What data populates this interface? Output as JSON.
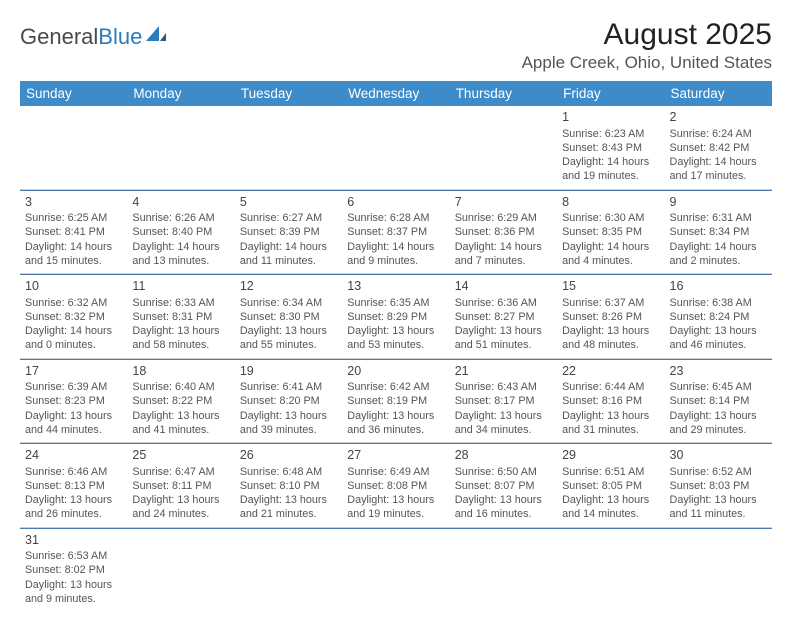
{
  "brand": {
    "part1": "General",
    "part2": "Blue"
  },
  "title": "August 2025",
  "location": "Apple Creek, Ohio, United States",
  "colors": {
    "header_bg": "#3d8bc8",
    "header_text": "#ffffff",
    "week_divider": "#4a7aa5",
    "cell_border": "#cfcfcf",
    "text": "#555555",
    "brand_blue": "#2b7bbf"
  },
  "weekdays": [
    "Sunday",
    "Monday",
    "Tuesday",
    "Wednesday",
    "Thursday",
    "Friday",
    "Saturday"
  ],
  "weeks": [
    [
      null,
      null,
      null,
      null,
      null,
      {
        "d": "1",
        "sr": "Sunrise: 6:23 AM",
        "ss": "Sunset: 8:43 PM",
        "dl1": "Daylight: 14 hours",
        "dl2": "and 19 minutes."
      },
      {
        "d": "2",
        "sr": "Sunrise: 6:24 AM",
        "ss": "Sunset: 8:42 PM",
        "dl1": "Daylight: 14 hours",
        "dl2": "and 17 minutes."
      }
    ],
    [
      {
        "d": "3",
        "sr": "Sunrise: 6:25 AM",
        "ss": "Sunset: 8:41 PM",
        "dl1": "Daylight: 14 hours",
        "dl2": "and 15 minutes."
      },
      {
        "d": "4",
        "sr": "Sunrise: 6:26 AM",
        "ss": "Sunset: 8:40 PM",
        "dl1": "Daylight: 14 hours",
        "dl2": "and 13 minutes."
      },
      {
        "d": "5",
        "sr": "Sunrise: 6:27 AM",
        "ss": "Sunset: 8:39 PM",
        "dl1": "Daylight: 14 hours",
        "dl2": "and 11 minutes."
      },
      {
        "d": "6",
        "sr": "Sunrise: 6:28 AM",
        "ss": "Sunset: 8:37 PM",
        "dl1": "Daylight: 14 hours",
        "dl2": "and 9 minutes."
      },
      {
        "d": "7",
        "sr": "Sunrise: 6:29 AM",
        "ss": "Sunset: 8:36 PM",
        "dl1": "Daylight: 14 hours",
        "dl2": "and 7 minutes."
      },
      {
        "d": "8",
        "sr": "Sunrise: 6:30 AM",
        "ss": "Sunset: 8:35 PM",
        "dl1": "Daylight: 14 hours",
        "dl2": "and 4 minutes."
      },
      {
        "d": "9",
        "sr": "Sunrise: 6:31 AM",
        "ss": "Sunset: 8:34 PM",
        "dl1": "Daylight: 14 hours",
        "dl2": "and 2 minutes."
      }
    ],
    [
      {
        "d": "10",
        "sr": "Sunrise: 6:32 AM",
        "ss": "Sunset: 8:32 PM",
        "dl1": "Daylight: 14 hours",
        "dl2": "and 0 minutes."
      },
      {
        "d": "11",
        "sr": "Sunrise: 6:33 AM",
        "ss": "Sunset: 8:31 PM",
        "dl1": "Daylight: 13 hours",
        "dl2": "and 58 minutes."
      },
      {
        "d": "12",
        "sr": "Sunrise: 6:34 AM",
        "ss": "Sunset: 8:30 PM",
        "dl1": "Daylight: 13 hours",
        "dl2": "and 55 minutes."
      },
      {
        "d": "13",
        "sr": "Sunrise: 6:35 AM",
        "ss": "Sunset: 8:29 PM",
        "dl1": "Daylight: 13 hours",
        "dl2": "and 53 minutes."
      },
      {
        "d": "14",
        "sr": "Sunrise: 6:36 AM",
        "ss": "Sunset: 8:27 PM",
        "dl1": "Daylight: 13 hours",
        "dl2": "and 51 minutes."
      },
      {
        "d": "15",
        "sr": "Sunrise: 6:37 AM",
        "ss": "Sunset: 8:26 PM",
        "dl1": "Daylight: 13 hours",
        "dl2": "and 48 minutes."
      },
      {
        "d": "16",
        "sr": "Sunrise: 6:38 AM",
        "ss": "Sunset: 8:24 PM",
        "dl1": "Daylight: 13 hours",
        "dl2": "and 46 minutes."
      }
    ],
    [
      {
        "d": "17",
        "sr": "Sunrise: 6:39 AM",
        "ss": "Sunset: 8:23 PM",
        "dl1": "Daylight: 13 hours",
        "dl2": "and 44 minutes."
      },
      {
        "d": "18",
        "sr": "Sunrise: 6:40 AM",
        "ss": "Sunset: 8:22 PM",
        "dl1": "Daylight: 13 hours",
        "dl2": "and 41 minutes."
      },
      {
        "d": "19",
        "sr": "Sunrise: 6:41 AM",
        "ss": "Sunset: 8:20 PM",
        "dl1": "Daylight: 13 hours",
        "dl2": "and 39 minutes."
      },
      {
        "d": "20",
        "sr": "Sunrise: 6:42 AM",
        "ss": "Sunset: 8:19 PM",
        "dl1": "Daylight: 13 hours",
        "dl2": "and 36 minutes."
      },
      {
        "d": "21",
        "sr": "Sunrise: 6:43 AM",
        "ss": "Sunset: 8:17 PM",
        "dl1": "Daylight: 13 hours",
        "dl2": "and 34 minutes."
      },
      {
        "d": "22",
        "sr": "Sunrise: 6:44 AM",
        "ss": "Sunset: 8:16 PM",
        "dl1": "Daylight: 13 hours",
        "dl2": "and 31 minutes."
      },
      {
        "d": "23",
        "sr": "Sunrise: 6:45 AM",
        "ss": "Sunset: 8:14 PM",
        "dl1": "Daylight: 13 hours",
        "dl2": "and 29 minutes."
      }
    ],
    [
      {
        "d": "24",
        "sr": "Sunrise: 6:46 AM",
        "ss": "Sunset: 8:13 PM",
        "dl1": "Daylight: 13 hours",
        "dl2": "and 26 minutes."
      },
      {
        "d": "25",
        "sr": "Sunrise: 6:47 AM",
        "ss": "Sunset: 8:11 PM",
        "dl1": "Daylight: 13 hours",
        "dl2": "and 24 minutes."
      },
      {
        "d": "26",
        "sr": "Sunrise: 6:48 AM",
        "ss": "Sunset: 8:10 PM",
        "dl1": "Daylight: 13 hours",
        "dl2": "and 21 minutes."
      },
      {
        "d": "27",
        "sr": "Sunrise: 6:49 AM",
        "ss": "Sunset: 8:08 PM",
        "dl1": "Daylight: 13 hours",
        "dl2": "and 19 minutes."
      },
      {
        "d": "28",
        "sr": "Sunrise: 6:50 AM",
        "ss": "Sunset: 8:07 PM",
        "dl1": "Daylight: 13 hours",
        "dl2": "and 16 minutes."
      },
      {
        "d": "29",
        "sr": "Sunrise: 6:51 AM",
        "ss": "Sunset: 8:05 PM",
        "dl1": "Daylight: 13 hours",
        "dl2": "and 14 minutes."
      },
      {
        "d": "30",
        "sr": "Sunrise: 6:52 AM",
        "ss": "Sunset: 8:03 PM",
        "dl1": "Daylight: 13 hours",
        "dl2": "and 11 minutes."
      }
    ],
    [
      {
        "d": "31",
        "sr": "Sunrise: 6:53 AM",
        "ss": "Sunset: 8:02 PM",
        "dl1": "Daylight: 13 hours",
        "dl2": "and 9 minutes."
      },
      null,
      null,
      null,
      null,
      null,
      null
    ]
  ]
}
